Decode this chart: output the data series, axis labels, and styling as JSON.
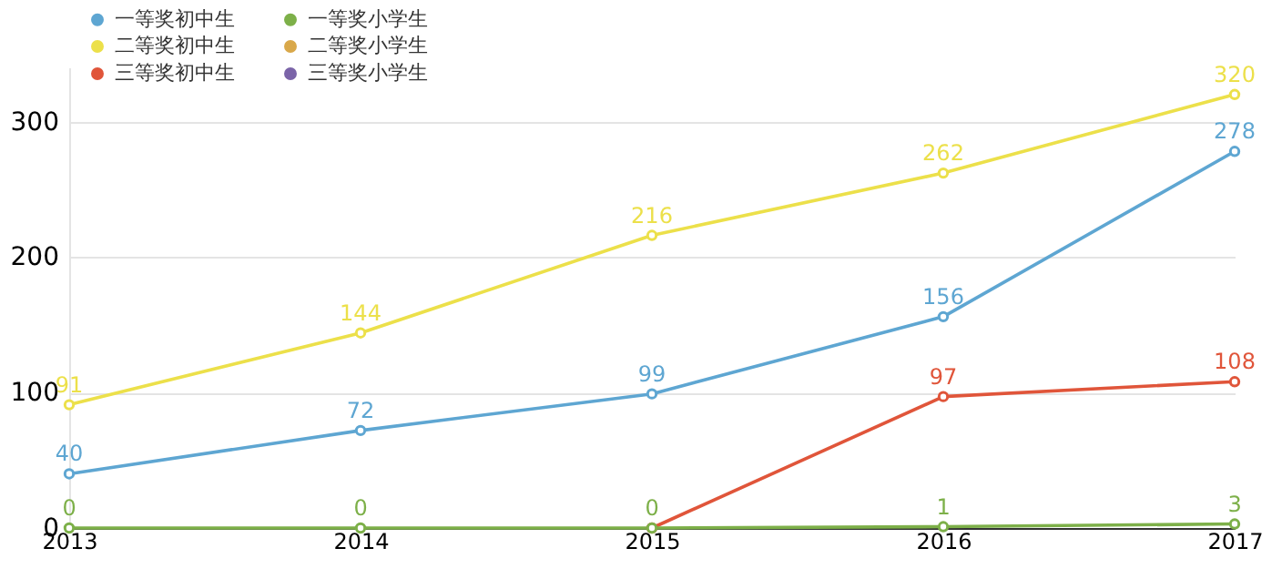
{
  "chart_data": {
    "type": "line",
    "x": [
      2013,
      2014,
      2015,
      2016,
      2017
    ],
    "xlim": [
      2013,
      2017
    ],
    "xticks": [
      2013,
      2014,
      2015,
      2016,
      2017
    ],
    "ylim": [
      0,
      340
    ],
    "yticks": [
      0,
      100,
      200,
      300
    ],
    "grid": "y",
    "legend": "top left",
    "marker": "circle",
    "series": [
      {
        "name": "一等奖初中生",
        "color": "#5ea6d2",
        "values": [
          40,
          72,
          99,
          156,
          278
        ],
        "value_labels": [
          "40",
          "72",
          "99",
          "156",
          "278"
        ]
      },
      {
        "name": "二等奖初中生",
        "color": "#ece04a",
        "values": [
          91,
          144,
          216,
          262,
          320
        ],
        "value_labels": [
          "91",
          "144",
          "216",
          "262",
          "320"
        ]
      },
      {
        "name": "三等奖初中生",
        "color": "#e0553a",
        "values": [
          null,
          null,
          0,
          97,
          108
        ],
        "value_labels": [
          null,
          null,
          null,
          "97",
          "108"
        ]
      },
      {
        "name": "一等奖小学生",
        "color": "#7db049",
        "values": [
          0,
          0,
          0,
          1,
          3
        ],
        "value_labels": [
          "0",
          "0",
          "0",
          "1",
          "3"
        ]
      },
      {
        "name": "二等奖小学生",
        "color": "#d9a84a",
        "values": [
          null,
          null,
          null,
          null,
          null
        ],
        "value_labels": [
          null,
          null,
          null,
          null,
          null
        ]
      },
      {
        "name": "三等奖小学生",
        "color": "#7b64a8",
        "values": [
          null,
          null,
          null,
          null,
          null
        ],
        "value_labels": [
          null,
          null,
          null,
          null,
          null
        ]
      }
    ]
  }
}
